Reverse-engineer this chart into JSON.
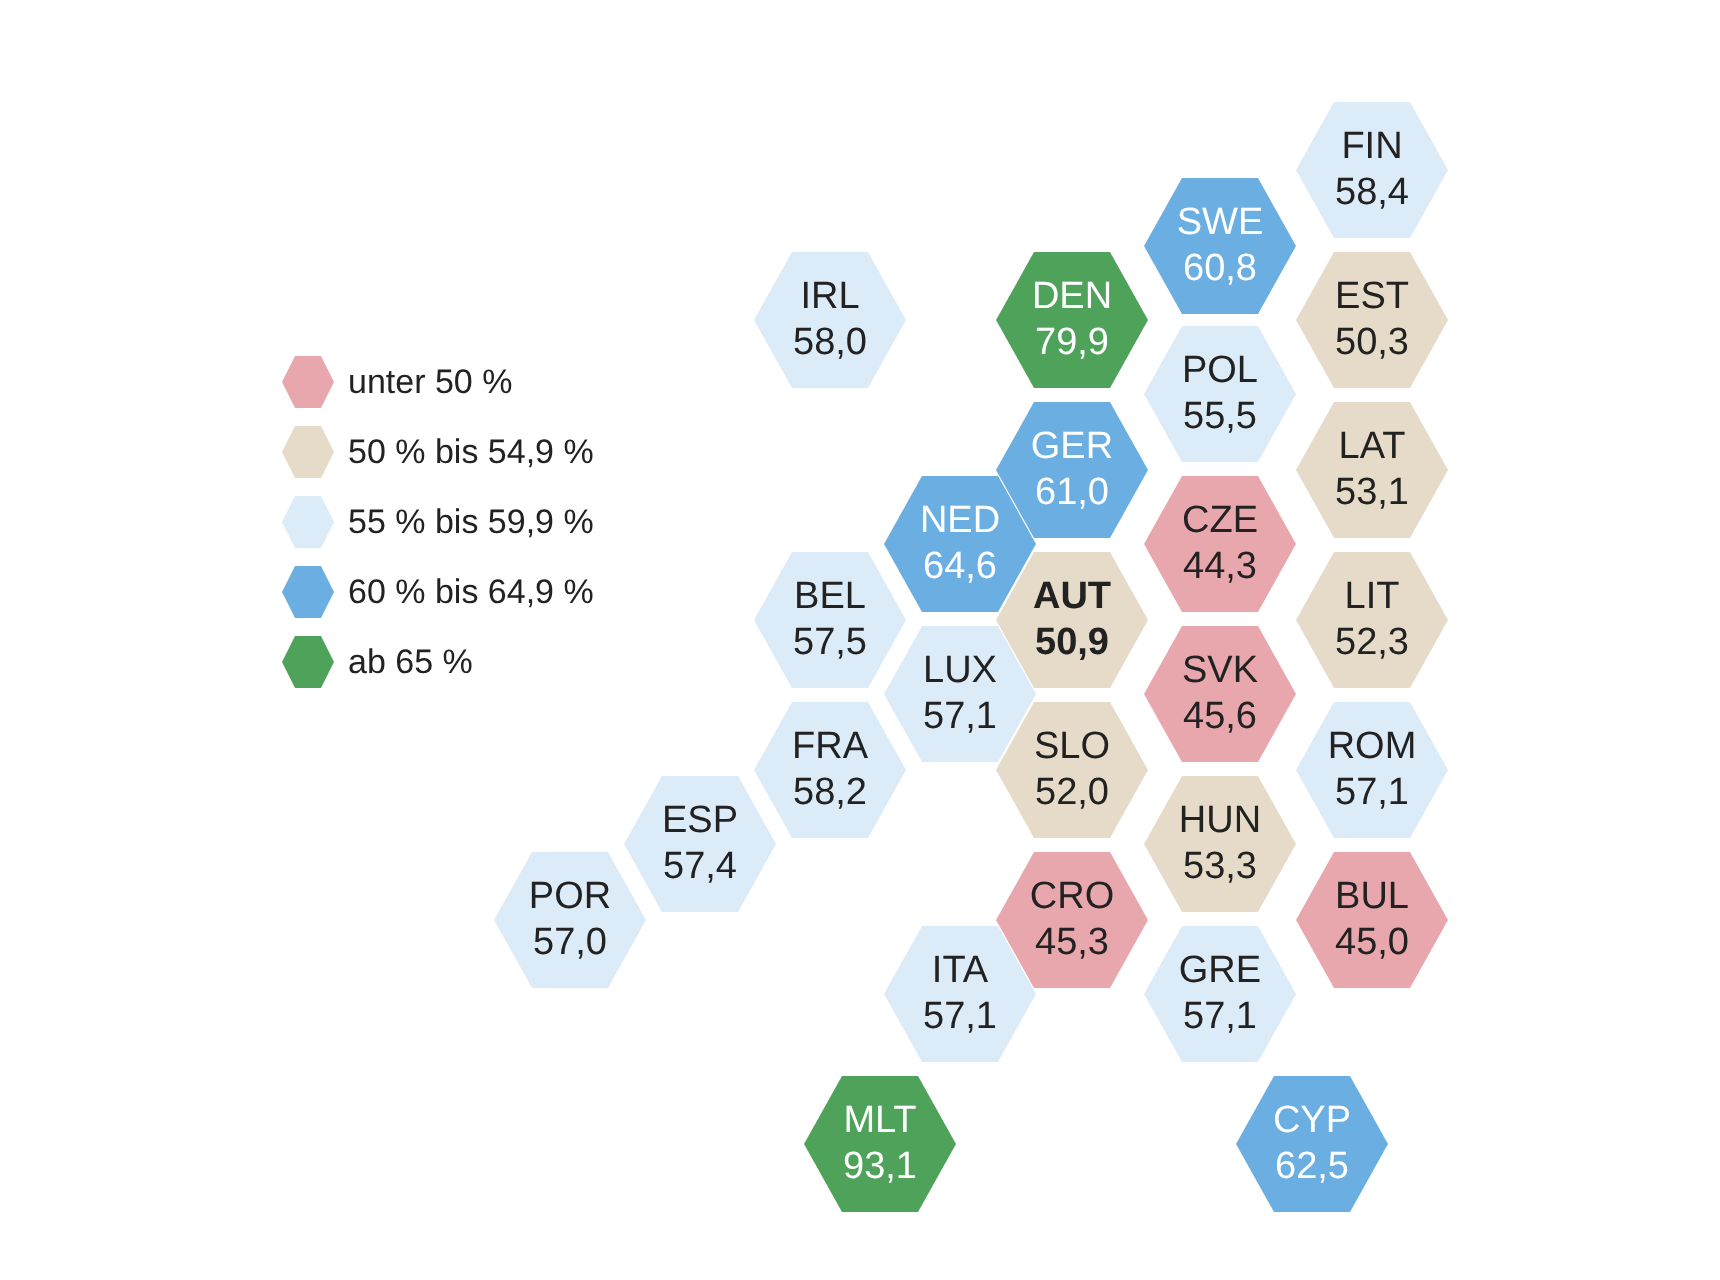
{
  "chart_data": {
    "type": "other",
    "categories": [
      "FIN",
      "SWE",
      "IRL",
      "DEN",
      "EST",
      "POL",
      "GER",
      "LAT",
      "NED",
      "CZE",
      "BEL",
      "AUT",
      "LIT",
      "LUX",
      "SVK",
      "FRA",
      "SLO",
      "ROM",
      "ESP",
      "HUN",
      "POR",
      "CRO",
      "BUL",
      "ITA",
      "GRE",
      "MLT",
      "CYP"
    ],
    "series": [
      {
        "name": "unter 50 %",
        "color": "#e8a7ad",
        "values": [
          null,
          null,
          null,
          null,
          null,
          null,
          null,
          null,
          null,
          44.3,
          null,
          null,
          null,
          null,
          45.6,
          null,
          null,
          null,
          null,
          null,
          null,
          45.3,
          45.0,
          null,
          null,
          null,
          null
        ],
        "value_labels": [
          null,
          null,
          null,
          null,
          null,
          null,
          null,
          null,
          null,
          "44,3",
          null,
          null,
          null,
          null,
          "45,6",
          null,
          null,
          null,
          null,
          null,
          null,
          "45,3",
          "45,0",
          null,
          null,
          null,
          null
        ]
      },
      {
        "name": "50 % bis 54,9 %",
        "color": "#e5dbc8",
        "values": [
          null,
          null,
          null,
          null,
          50.3,
          null,
          null,
          53.1,
          null,
          null,
          null,
          50.9,
          52.3,
          null,
          null,
          null,
          52.0,
          null,
          null,
          53.3,
          null,
          null,
          null,
          null,
          null,
          null,
          null
        ],
        "value_labels": [
          null,
          null,
          null,
          null,
          "50,3",
          null,
          null,
          "53,1",
          null,
          null,
          null,
          "50,9",
          "52,3",
          null,
          null,
          null,
          "52,0",
          null,
          null,
          "53,3",
          null,
          null,
          null,
          null,
          null,
          null,
          null
        ]
      },
      {
        "name": "55 % bis 59,9 %",
        "color": "#dcebf8",
        "values": [
          58.4,
          null,
          58.0,
          null,
          null,
          55.5,
          null,
          null,
          null,
          null,
          57.5,
          null,
          null,
          57.1,
          null,
          58.2,
          null,
          57.1,
          57.4,
          null,
          57.0,
          null,
          null,
          57.1,
          57.1,
          null,
          null
        ],
        "value_labels": [
          "58,4",
          null,
          "58,0",
          null,
          null,
          "55,5",
          null,
          null,
          null,
          null,
          "57,5",
          null,
          null,
          "57,1",
          null,
          "58,2",
          null,
          "57,1",
          "57,4",
          null,
          "57,0",
          null,
          null,
          "57,1",
          "57,1",
          null,
          null
        ]
      },
      {
        "name": "60 % bis 64,9 %",
        "color": "#6aaee2",
        "values": [
          null,
          60.8,
          null,
          null,
          null,
          null,
          61.0,
          null,
          64.6,
          null,
          null,
          null,
          null,
          null,
          null,
          null,
          null,
          null,
          null,
          null,
          null,
          null,
          null,
          null,
          null,
          null,
          62.5
        ],
        "value_labels": [
          null,
          "60,8",
          null,
          null,
          null,
          null,
          "61,0",
          null,
          "64,6",
          null,
          null,
          null,
          null,
          null,
          null,
          null,
          null,
          null,
          null,
          null,
          null,
          null,
          null,
          null,
          null,
          null,
          "62,5"
        ]
      },
      {
        "name": "ab 65 %",
        "color": "#4fa25a",
        "values": [
          null,
          null,
          null,
          79.9,
          null,
          null,
          null,
          null,
          null,
          null,
          null,
          null,
          null,
          null,
          null,
          null,
          null,
          null,
          null,
          null,
          null,
          null,
          null,
          null,
          null,
          93.1,
          null
        ],
        "value_labels": [
          null,
          null,
          null,
          "79,9",
          null,
          null,
          null,
          null,
          null,
          null,
          null,
          null,
          null,
          null,
          null,
          null,
          null,
          null,
          null,
          null,
          null,
          null,
          null,
          null,
          null,
          "93,1",
          null
        ]
      }
    ],
    "legend": "left"
  }
}
